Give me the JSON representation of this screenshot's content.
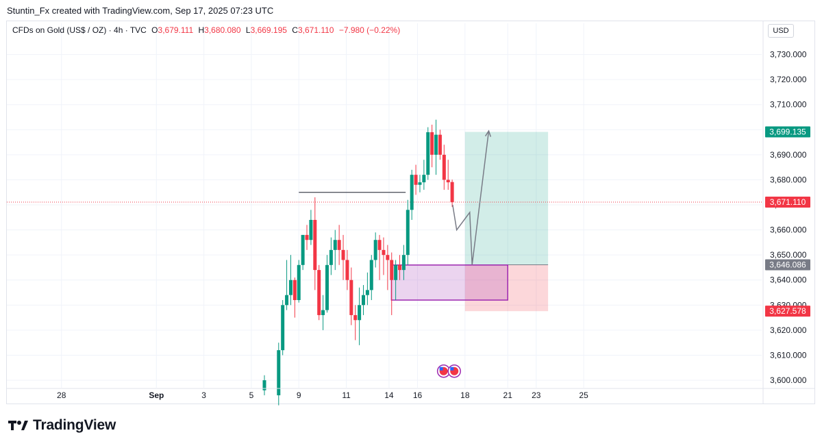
{
  "caption": "Stuntin_Fx created with TradingView.com, Sep 17, 2025 07:23 UTC",
  "legend": {
    "symbol": "CFDs on Gold (US$ / OZ) · 4h · TVC",
    "o_label": "O",
    "o_value": "3,679.111",
    "h_label": "H",
    "h_value": "3,680.080",
    "l_label": "L",
    "l_value": "3,669.195",
    "c_label": "C",
    "c_value": "3,671.110",
    "change": "−7.980 (−0.22%)"
  },
  "currency": "USD",
  "brand": "TradingView",
  "colors": {
    "up": "#089981",
    "down": "#f23645",
    "zone": "#9c27b0",
    "target": "#089981",
    "stop": "#f23645",
    "neutral": "#787b86"
  },
  "chart_data": {
    "type": "candlestick",
    "ylim": [
      3597,
      3737
    ],
    "xlim": [
      -2.3,
      29.5
    ],
    "y_ticks": [
      3600,
      3610,
      3620,
      3630,
      3640,
      3650,
      3660,
      3670,
      3680,
      3690,
      3700,
      3710,
      3720,
      3730
    ],
    "y_tick_labels": [
      "3,600.000",
      "3,610.000",
      "3,620.000",
      "3,630.000",
      "3,640.000",
      "3,650.000",
      "3,660.000",
      "3,670.000",
      "3,680.000",
      "3,690.000",
      "3,700.000",
      "3,710.000",
      "3,720.000",
      "3,730.000"
    ],
    "x_ticks": [
      {
        "label": "28",
        "x": 0
      },
      {
        "label": "Sep",
        "x": 4
      },
      {
        "label": "3",
        "x": 6
      },
      {
        "label": "5",
        "x": 8
      },
      {
        "label": "9",
        "x": 10
      },
      {
        "label": "11",
        "x": 12
      },
      {
        "label": "14",
        "x": 13.8
      },
      {
        "label": "16",
        "x": 15
      },
      {
        "label": "18",
        "x": 17
      },
      {
        "label": "21",
        "x": 18.8
      },
      {
        "label": "23",
        "x": 20
      },
      {
        "label": "25",
        "x": 22
      }
    ],
    "candles": [
      [
        8.55,
        3596.0,
        3602.0,
        3594.0,
        3600.0
      ],
      [
        9.15,
        3594.0,
        3615.0,
        3590.0,
        3612.0
      ],
      [
        9.32,
        3612.0,
        3632.0,
        3610.0,
        3630.0
      ],
      [
        9.49,
        3630.0,
        3648.0,
        3628.0,
        3634.0
      ],
      [
        9.66,
        3634.0,
        3650.0,
        3630.0,
        3640.0
      ],
      [
        9.83,
        3640.0,
        3641.0,
        3625.0,
        3632.0
      ],
      [
        10.0,
        3632.0,
        3648.0,
        3631.0,
        3646.0
      ],
      [
        10.17,
        3646.0,
        3658.0,
        3644.0,
        3658.0
      ],
      [
        10.34,
        3658.0,
        3662.0,
        3652.0,
        3656.0
      ],
      [
        10.51,
        3656.0,
        3668.0,
        3654.0,
        3664.0
      ],
      [
        10.68,
        3664.0,
        3673.0,
        3636.0,
        3644.0
      ],
      [
        10.85,
        3644.0,
        3646.0,
        3624.0,
        3626.0
      ],
      [
        11.02,
        3626.0,
        3634.0,
        3620.0,
        3628.0
      ],
      [
        11.19,
        3628.0,
        3650.0,
        3627.0,
        3646.0
      ],
      [
        11.36,
        3646.0,
        3657.0,
        3642.0,
        3652.0
      ],
      [
        11.53,
        3652.0,
        3660.0,
        3644.0,
        3656.0
      ],
      [
        11.7,
        3656.0,
        3662.0,
        3646.0,
        3652.0
      ],
      [
        11.87,
        3652.0,
        3658.0,
        3640.0,
        3648.0
      ],
      [
        12.04,
        3648.0,
        3652.0,
        3636.0,
        3640.0
      ],
      [
        12.21,
        3640.0,
        3645.0,
        3622.0,
        3626.0
      ],
      [
        12.38,
        3626.0,
        3630.0,
        3616.0,
        3624.0
      ],
      [
        12.55,
        3624.0,
        3637.0,
        3614.0,
        3630.0
      ],
      [
        12.72,
        3630.0,
        3638.0,
        3626.0,
        3634.0
      ],
      [
        12.89,
        3634.0,
        3643.0,
        3630.0,
        3636.0
      ],
      [
        13.06,
        3636.0,
        3650.0,
        3632.0,
        3648.0
      ],
      [
        13.23,
        3648.0,
        3659.0,
        3645.0,
        3656.0
      ],
      [
        13.4,
        3656.0,
        3658.0,
        3640.0,
        3652.0
      ],
      [
        13.57,
        3652.0,
        3657.0,
        3642.0,
        3650.0
      ],
      [
        13.74,
        3650.0,
        3654.0,
        3636.0,
        3648.0
      ],
      [
        13.91,
        3648.0,
        3651.0,
        3626.0,
        3640.0
      ],
      [
        14.08,
        3640.0,
        3648.0,
        3632.0,
        3646.0
      ],
      [
        14.25,
        3646.0,
        3650.0,
        3640.0,
        3644.0
      ],
      [
        14.42,
        3644.0,
        3654.0,
        3640.0,
        3650.0
      ],
      [
        14.59,
        3650.0,
        3672.0,
        3646.0,
        3668.0
      ],
      [
        14.76,
        3668.0,
        3684.0,
        3664.0,
        3682.0
      ],
      [
        14.93,
        3682.0,
        3686.0,
        3674.0,
        3678.0
      ],
      [
        15.1,
        3678.0,
        3682.0,
        3675.0,
        3679.0
      ],
      [
        15.27,
        3679.0,
        3688.0,
        3676.0,
        3682.0
      ],
      [
        15.44,
        3682.0,
        3701.0,
        3680.0,
        3699.0
      ],
      [
        15.61,
        3699.0,
        3702.0,
        3685.0,
        3690.0
      ],
      [
        15.78,
        3690.0,
        3704.0,
        3682.0,
        3698.0
      ],
      [
        15.95,
        3698.0,
        3700.0,
        3688.0,
        3690.0
      ],
      [
        16.12,
        3690.0,
        3694.0,
        3676.0,
        3680.0
      ],
      [
        16.29,
        3680.0,
        3688.0,
        3676.0,
        3679.0
      ],
      [
        16.46,
        3679.111,
        3680.08,
        3669.195,
        3671.11
      ]
    ],
    "price_lines": [
      {
        "price": 3699.135,
        "label": "3,699.135",
        "color": "#089981"
      },
      {
        "price": 3671.11,
        "label": "3,671.110",
        "color": "#f23645"
      },
      {
        "price": 3646.086,
        "label": "3,646.086",
        "color": "#787b86"
      },
      {
        "price": 3627.578,
        "label": "3,627.578",
        "color": "#f23645"
      }
    ],
    "annotations": {
      "horizontal_line": {
        "x1": 10.0,
        "x2": 14.5,
        "price": 3675.0
      },
      "demand_zone": {
        "x1": 13.9,
        "x2": 18.8,
        "top": 3646.0,
        "bottom": 3632.0
      },
      "position": {
        "x1": 17.0,
        "x2": 20.5,
        "entry": 3646.086,
        "target": 3699.135,
        "stop": 3627.578
      },
      "path": [
        [
          16.48,
          3670.0
        ],
        [
          16.65,
          3660.0
        ],
        [
          17.2,
          3667.0
        ],
        [
          17.3,
          3646.086
        ],
        [
          18.0,
          3699.5
        ]
      ],
      "events": [
        {
          "x": 16.1,
          "price": 3602.0
        },
        {
          "x": 16.55,
          "price": 3602.0
        }
      ]
    }
  }
}
